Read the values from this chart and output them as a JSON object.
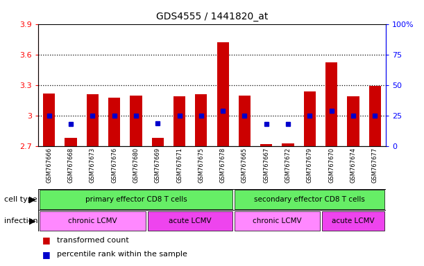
{
  "title": "GDS4555 / 1441820_at",
  "samples": [
    "GSM767666",
    "GSM767668",
    "GSM767673",
    "GSM767676",
    "GSM767680",
    "GSM767669",
    "GSM767671",
    "GSM767675",
    "GSM767678",
    "GSM767665",
    "GSM767667",
    "GSM767672",
    "GSM767679",
    "GSM767670",
    "GSM767674",
    "GSM767677"
  ],
  "transformed_counts": [
    3.22,
    2.78,
    3.21,
    3.18,
    3.2,
    2.78,
    3.19,
    3.21,
    3.72,
    3.2,
    2.72,
    2.73,
    3.24,
    3.52,
    3.19,
    3.29
  ],
  "percentile_ranks": [
    25,
    18,
    25,
    25,
    25,
    19,
    25,
    25,
    29,
    25,
    18,
    18,
    25,
    29,
    25,
    25
  ],
  "ylim_left": [
    2.7,
    3.9
  ],
  "ylim_right": [
    0,
    100
  ],
  "yticks_left": [
    2.7,
    3.0,
    3.3,
    3.6,
    3.9
  ],
  "ytick_labels_left": [
    "2.7",
    "3",
    "3.3",
    "3.6",
    "3.9"
  ],
  "yticks_right": [
    0,
    25,
    50,
    75,
    100
  ],
  "ytick_labels_right": [
    "0",
    "25",
    "50",
    "75",
    "100%"
  ],
  "bar_color": "#cc0000",
  "dot_color": "#0000cc",
  "bar_bottom": 2.7,
  "cell_type_groups": [
    {
      "label": "primary effector CD8 T cells",
      "start": 0,
      "end": 9,
      "color": "#66ee66"
    },
    {
      "label": "secondary effector CD8 T cells",
      "start": 9,
      "end": 16,
      "color": "#66ee66"
    }
  ],
  "infection_groups": [
    {
      "label": "chronic LCMV",
      "start": 0,
      "end": 5,
      "color": "#ff88ff"
    },
    {
      "label": "acute LCMV",
      "start": 5,
      "end": 9,
      "color": "#ee44ee"
    },
    {
      "label": "chronic LCMV",
      "start": 9,
      "end": 13,
      "color": "#ff88ff"
    },
    {
      "label": "acute LCMV",
      "start": 13,
      "end": 16,
      "color": "#ee44ee"
    }
  ],
  "cell_type_label": "cell type",
  "infection_label": "infection",
  "legend_red_label": "transformed count",
  "legend_blue_label": "percentile rank within the sample",
  "bar_width": 0.55,
  "title_fontsize": 10,
  "tick_fontsize": 8,
  "label_fontsize": 8,
  "sample_fontsize": 6
}
